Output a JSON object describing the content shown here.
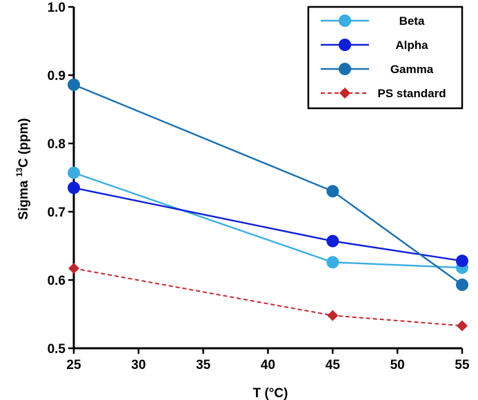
{
  "chart_data": {
    "type": "line",
    "title": "",
    "xlabel": "T (°C)",
    "ylabel_prefix": "Sigma ",
    "ylabel_sup": "13",
    "ylabel_suffix": "C (ppm)",
    "xlim": [
      25,
      55
    ],
    "ylim": [
      0.5,
      1.0
    ],
    "xticks": [
      25,
      30,
      35,
      40,
      45,
      50,
      55
    ],
    "xtick_labels": [
      "25",
      "30",
      "35",
      "40",
      "45",
      "50",
      "55"
    ],
    "yticks": [
      0.5,
      0.6,
      0.7,
      0.8,
      0.9,
      1.0
    ],
    "ytick_labels": [
      "0.5",
      "0.6",
      "0.7",
      "0.8",
      "0.9",
      "1.0"
    ],
    "grid": false,
    "legend_position": "top-right",
    "series": [
      {
        "name": "Beta",
        "x": [
          25,
          45,
          55
        ],
        "y": [
          0.757,
          0.626,
          0.618
        ],
        "color": "#3aaee0",
        "marker": "circle",
        "dash": false
      },
      {
        "name": "Alpha",
        "x": [
          25,
          45,
          55
        ],
        "y": [
          0.735,
          0.657,
          0.628
        ],
        "color": "#1020d8",
        "marker": "circle",
        "dash": false
      },
      {
        "name": "Gamma",
        "x": [
          25,
          45,
          55
        ],
        "y": [
          0.886,
          0.73,
          0.593
        ],
        "color": "#1a6faf",
        "marker": "circle",
        "dash": false
      },
      {
        "name": "PS standard",
        "x": [
          25,
          45,
          55
        ],
        "y": [
          0.617,
          0.548,
          0.533
        ],
        "color": "#c0282d",
        "marker": "diamond",
        "dash": true
      }
    ]
  }
}
